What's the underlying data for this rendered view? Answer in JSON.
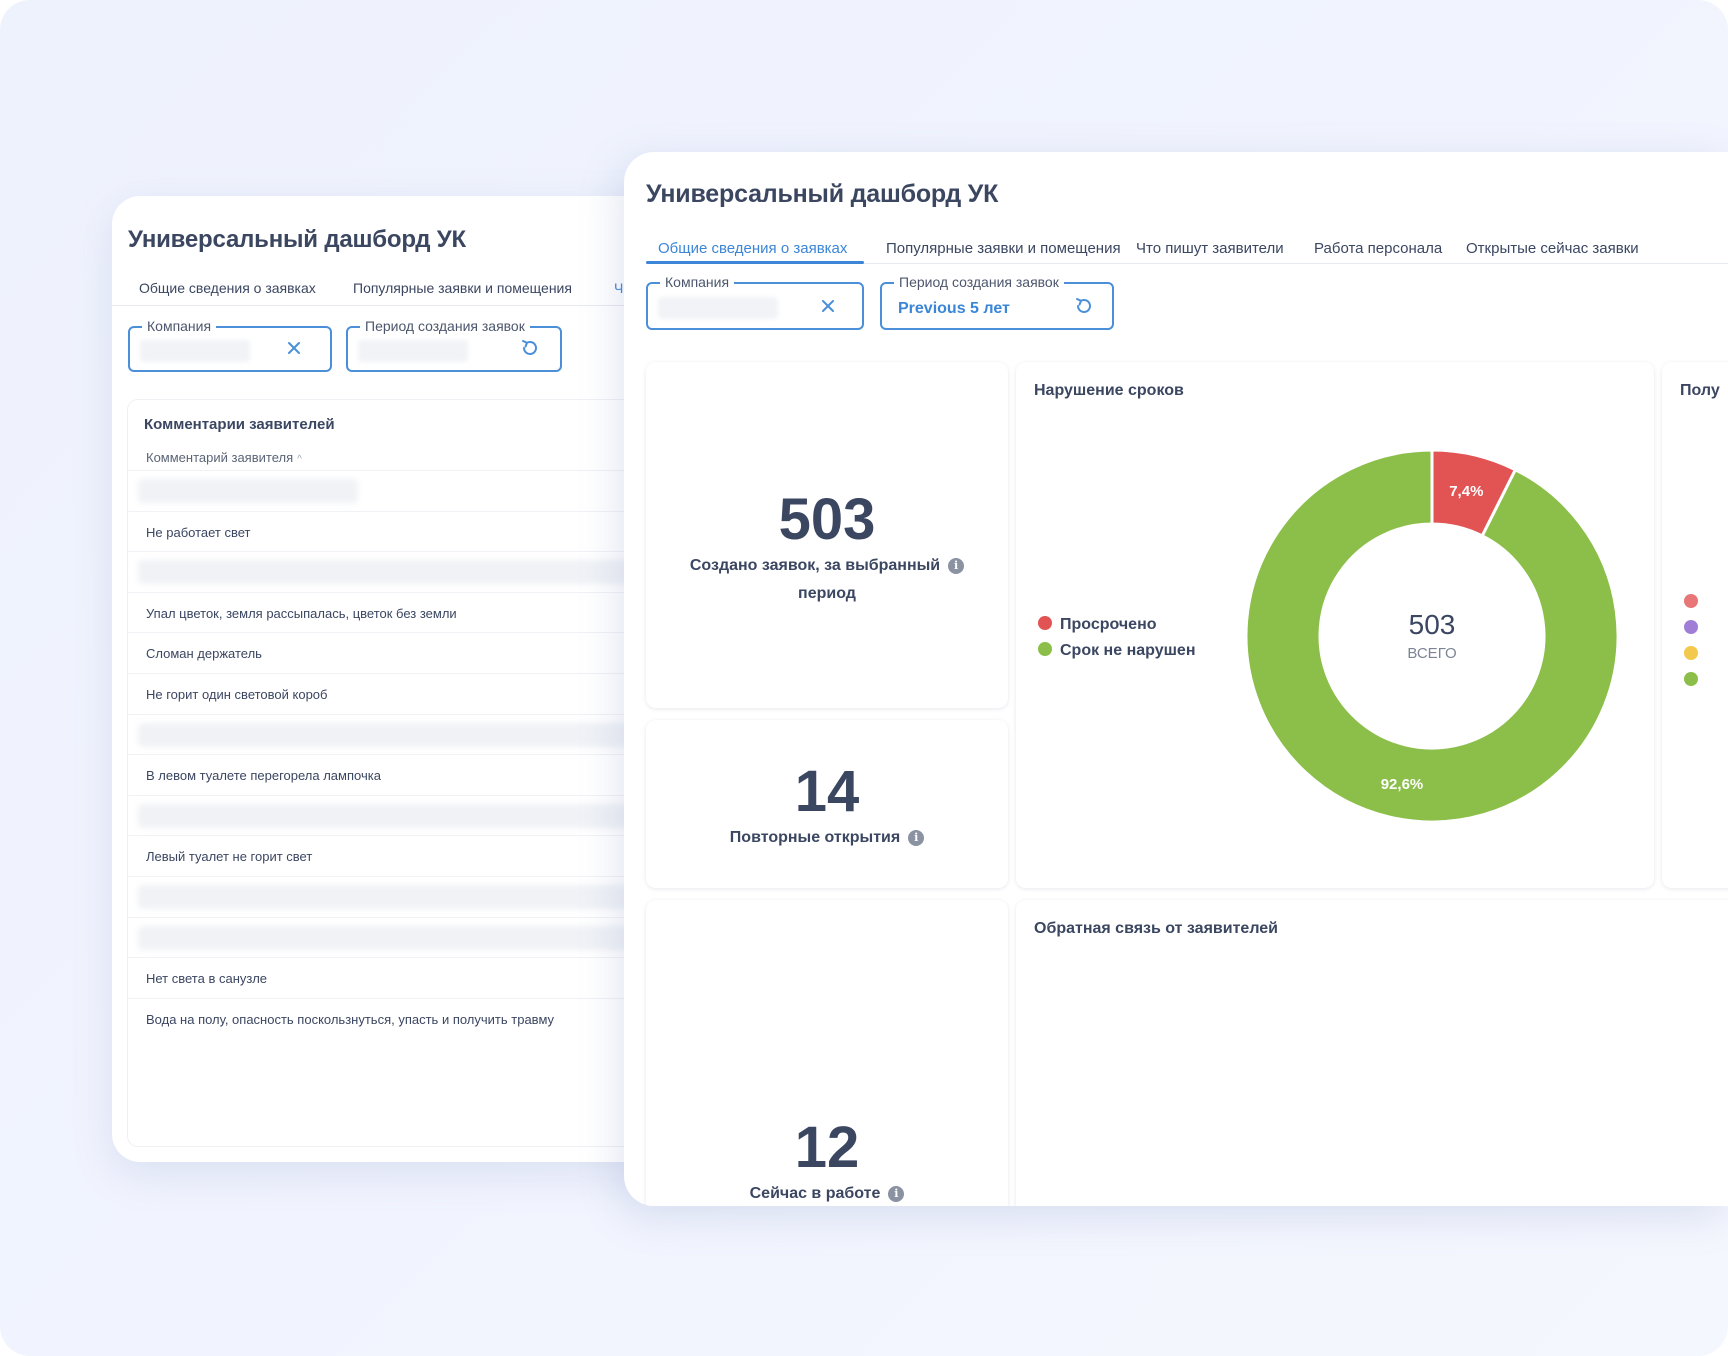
{
  "back_card": {
    "title": "Универсальный дашборд УК",
    "tabs": [
      "Общие сведения о заявках",
      "Популярные заявки и помещения",
      "Ч"
    ],
    "company_label": "Компания",
    "period_label": "Период создания заявок",
    "comments": {
      "title": "Комментарии заявителей",
      "column_header": "Комментарий заявителя",
      "rows": [
        "",
        "Не работает свет",
        "",
        "Упал цветок, земля рассыпалась, цветок без земли",
        "Сломан держатель",
        "Не горит один световой короб",
        "",
        "В левом туалете перегорела лампочка",
        "",
        "Левый туалет не горит свет",
        "",
        "",
        "Нет света в санузле",
        "Вода на полу, опасность поскользнуться, упасть и получить травму"
      ]
    }
  },
  "front_card": {
    "title": "Универсальный дашборд УК",
    "tabs": [
      {
        "label": "Общие сведения о заявках",
        "active": true
      },
      {
        "label": "Популярные заявки и помещения",
        "active": false
      },
      {
        "label": "Что пишут заявители",
        "active": false
      },
      {
        "label": "Работа персонала",
        "active": false
      },
      {
        "label": "Открытые сейчас заявки",
        "active": false
      }
    ],
    "filters": {
      "company_label": "Компания",
      "period_label": "Период создания заявок",
      "period_value": "Previous 5 лет"
    },
    "kpis": [
      {
        "value": "503",
        "label_line1": "Создано заявок, за выбранный",
        "label_line2": "период"
      },
      {
        "value": "14",
        "label": "Повторные открытия"
      },
      {
        "value": "12",
        "label": "Сейчас в работе"
      }
    ],
    "deadline_panel": {
      "title": "Нарушение сроков",
      "center_value": "503",
      "center_label": "ВСЕГО"
    },
    "right_panel_title": "Полу",
    "feedback_panel": {
      "title": "Обратная связь от заявителей"
    }
  },
  "colors": {
    "accent": "#3b86d6",
    "overdue": "#e25353",
    "on_time": "#8bbf4a",
    "purple": "#a07ed6",
    "yellow": "#f2c94c"
  },
  "chart_data": {
    "type": "pie",
    "title": "Нарушение сроков",
    "total": 503,
    "series": [
      {
        "name": "Просрочено",
        "value": 7.4,
        "label": "7,4%",
        "color": "#e25353"
      },
      {
        "name": "Срок не нарушен",
        "value": 92.6,
        "label": "92,6%",
        "color": "#8bbf4a"
      }
    ],
    "legend_position": "left"
  }
}
